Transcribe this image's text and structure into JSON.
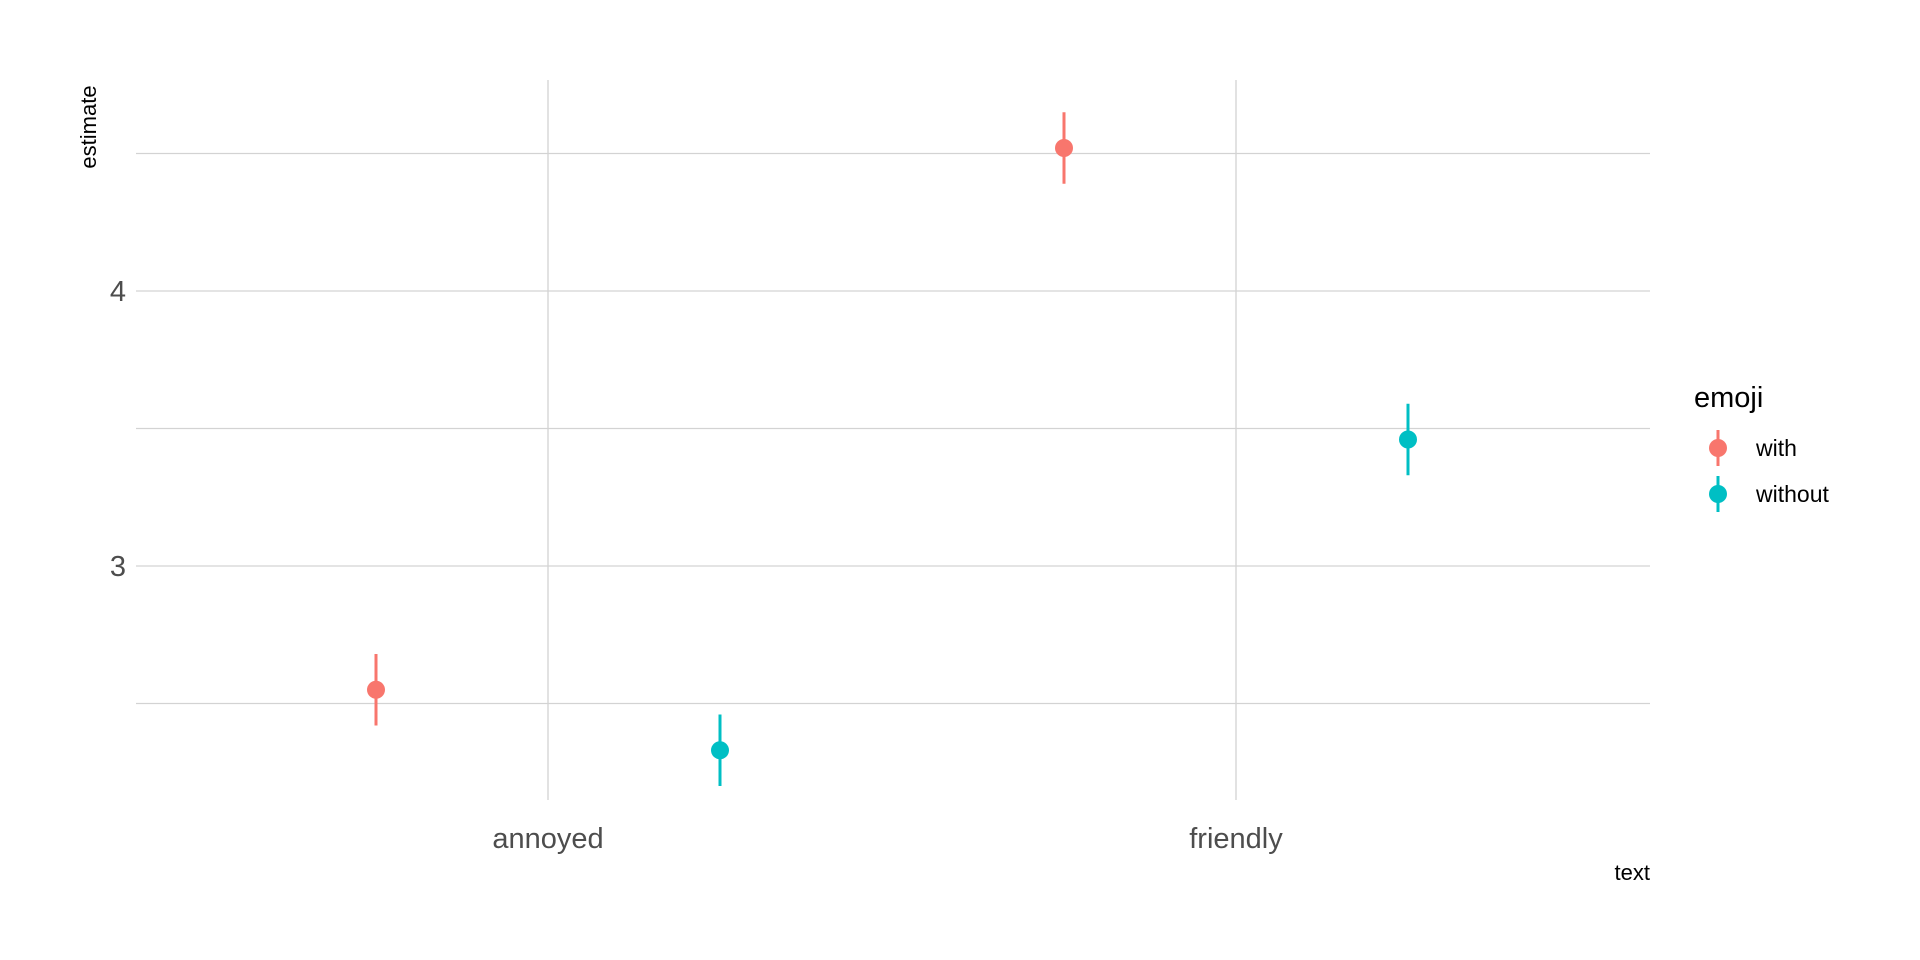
{
  "chart_data": {
    "type": "scatter",
    "subtype": "pointrange",
    "categories": [
      "annoyed",
      "friendly"
    ],
    "xlabel": "text",
    "ylabel": "estimate",
    "yticks": [
      3,
      4
    ],
    "ylim": [
      2.15,
      4.75
    ],
    "grid": true,
    "legend": {
      "title": "emoji",
      "position": "right"
    },
    "series": [
      {
        "name": "with",
        "color": "#F8766D",
        "points": [
          {
            "category": "annoyed",
            "estimate": 2.55,
            "lower": 2.42,
            "upper": 2.68
          },
          {
            "category": "friendly",
            "estimate": 4.52,
            "lower": 4.39,
            "upper": 4.65
          }
        ]
      },
      {
        "name": "without",
        "color": "#00BFC4",
        "points": [
          {
            "category": "annoyed",
            "estimate": 2.33,
            "lower": 2.2,
            "upper": 2.46
          },
          {
            "category": "friendly",
            "estimate": 3.46,
            "lower": 3.33,
            "upper": 3.59
          }
        ]
      }
    ]
  }
}
